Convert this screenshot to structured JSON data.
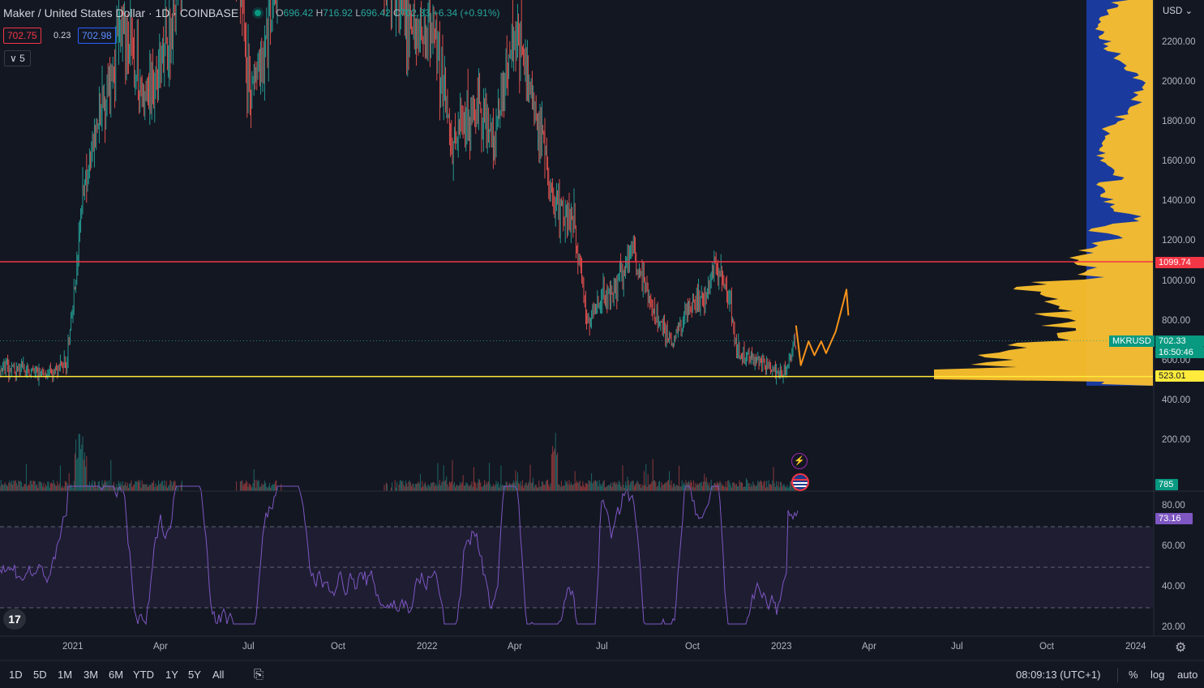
{
  "header": {
    "title": "Maker / United States Dollar · 1D · COINBASE",
    "o_label": "O",
    "o": "696.42",
    "h_label": "H",
    "h": "716.92",
    "l_label": "L",
    "l": "696.42",
    "c_label": "C",
    "c": "702.33",
    "change": "+6.34 (+0.91%)",
    "bid": "702.75",
    "spread": "0.23",
    "ask": "702.98",
    "indicator_count": "5"
  },
  "price_axis": {
    "currency": "USD",
    "ticks": [
      "2200.00",
      "2000.00",
      "1800.00",
      "1600.00",
      "1400.00",
      "1200.00",
      "1000.00",
      "800.00",
      "600.00",
      "400.00",
      "200.00"
    ],
    "tags": {
      "resistance": "1099.74",
      "symbol": "MKRUSD",
      "last": "702.33",
      "countdown": "16:50:46",
      "support": "523.01",
      "volume": "785"
    }
  },
  "rsi_axis": {
    "ticks": [
      "80.00",
      "60.00",
      "40.00",
      "20.00"
    ],
    "value": "73.16"
  },
  "time_axis": [
    "2021",
    "Apr",
    "Jul",
    "Oct",
    "2022",
    "Apr",
    "Jul",
    "Oct",
    "2023",
    "Apr",
    "Jul",
    "Oct",
    "2024"
  ],
  "bottom_bar": {
    "timeframes": [
      "1D",
      "5D",
      "1M",
      "3M",
      "6M",
      "YTD",
      "1Y",
      "5Y",
      "All"
    ],
    "clock": "08:09:13 (UTC+1)",
    "percent": "%",
    "log": "log",
    "auto": "auto"
  },
  "colors": {
    "background": "#131722",
    "up": "#26a69a",
    "down": "#ef5350",
    "resistance_line": "#f23645",
    "support_line": "#ffeb3b",
    "rsi": "#7e57c2",
    "volume_profile": "#fbc02d",
    "volume_profile_bg": "#1a3a9e",
    "projection": "#f7931a"
  },
  "chart_data": {
    "type": "candlestick",
    "symbol": "MKRUSD",
    "ylim": [
      0,
      2350
    ],
    "horizontal_lines": [
      {
        "value": 1099.74
      },
      {
        "value": 523.01
      }
    ],
    "price_path": [
      {
        "t": "2020-10-15",
        "p": 560
      },
      {
        "t": "2020-12-10",
        "p": 540
      },
      {
        "t": "2020-12-25",
        "p": 600
      },
      {
        "t": "2021-01-05",
        "p": 1100
      },
      {
        "t": "2021-01-12",
        "p": 1500
      },
      {
        "t": "2021-02-01",
        "p": 1900
      },
      {
        "t": "2021-02-20",
        "p": 2300
      },
      {
        "t": "2021-03-15",
        "p": 1900
      },
      {
        "t": "2021-04-10",
        "p": 2200
      },
      {
        "t": "2021-05-10",
        "p": 3500
      },
      {
        "t": "2021-06-20",
        "p": 2600
      },
      {
        "t": "2021-07-01",
        "p": 1950
      },
      {
        "t": "2021-07-20",
        "p": 2200
      },
      {
        "t": "2021-08-20",
        "p": 3200
      },
      {
        "t": "2021-11-01",
        "p": 2800
      },
      {
        "t": "2021-12-10",
        "p": 2300
      },
      {
        "t": "2022-01-10",
        "p": 2200
      },
      {
        "t": "2022-01-25",
        "p": 1700
      },
      {
        "t": "2022-02-20",
        "p": 1900
      },
      {
        "t": "2022-03-10",
        "p": 1700
      },
      {
        "t": "2022-03-31",
        "p": 2300
      },
      {
        "t": "2022-04-15",
        "p": 2000
      },
      {
        "t": "2022-05-10",
        "p": 1400
      },
      {
        "t": "2022-05-31",
        "p": 1300
      },
      {
        "t": "2022-06-15",
        "p": 800
      },
      {
        "t": "2022-06-25",
        "p": 900
      },
      {
        "t": "2022-07-10",
        "p": 950
      },
      {
        "t": "2022-07-31",
        "p": 1150
      },
      {
        "t": "2022-08-20",
        "p": 850
      },
      {
        "t": "2022-09-10",
        "p": 700
      },
      {
        "t": "2022-09-25",
        "p": 850
      },
      {
        "t": "2022-10-10",
        "p": 900
      },
      {
        "t": "2022-10-25",
        "p": 1100
      },
      {
        "t": "2022-11-08",
        "p": 900
      },
      {
        "t": "2022-11-15",
        "p": 650
      },
      {
        "t": "2022-12-15",
        "p": 580
      },
      {
        "t": "2022-12-30",
        "p": 530
      },
      {
        "t": "2023-01-05",
        "p": 560
      },
      {
        "t": "2023-01-10",
        "p": 650
      },
      {
        "t": "2023-01-15",
        "p": 702
      }
    ],
    "rsi": {
      "levels": [
        70,
        50,
        30
      ],
      "ylim": [
        15,
        90
      ],
      "last": 73.16
    },
    "projection_path": [
      {
        "t": "2023-01-15",
        "p": 780
      },
      {
        "t": "2023-01-20",
        "p": 580
      },
      {
        "t": "2023-01-28",
        "p": 700
      },
      {
        "t": "2023-02-03",
        "p": 630
      },
      {
        "t": "2023-02-10",
        "p": 700
      },
      {
        "t": "2023-02-15",
        "p": 640
      },
      {
        "t": "2023-02-25",
        "p": 750
      },
      {
        "t": "2023-03-05",
        "p": 900
      },
      {
        "t": "2023-03-08",
        "p": 960
      },
      {
        "t": "2023-03-10",
        "p": 830
      }
    ]
  }
}
